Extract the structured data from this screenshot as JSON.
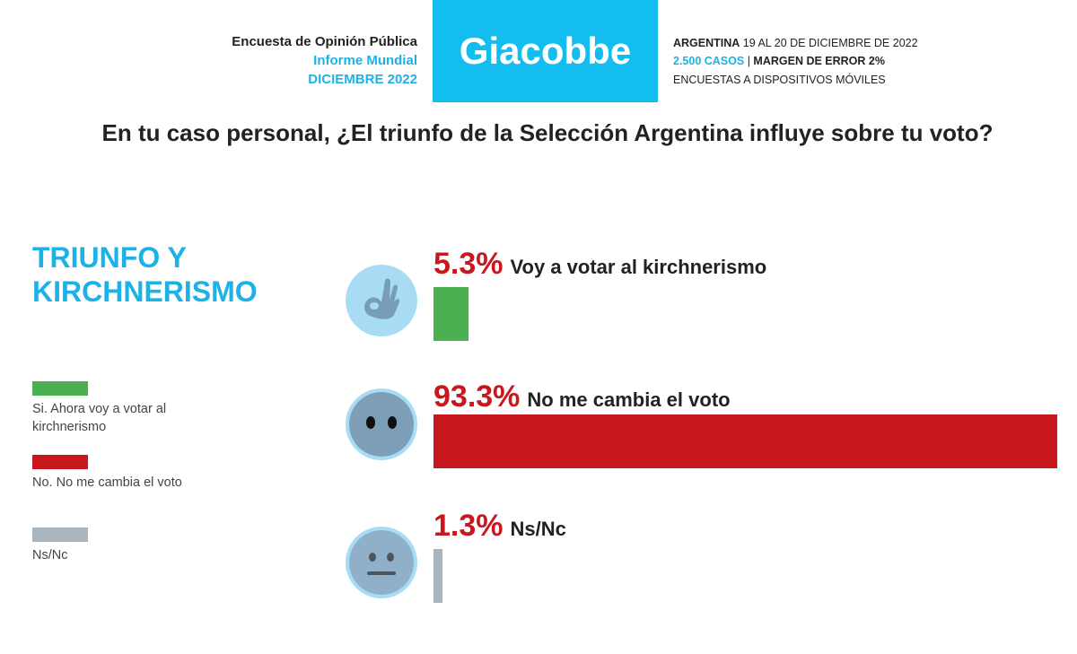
{
  "header": {
    "left_line1": "Encuesta de Opinión Pública",
    "left_line2": "Informe Mundial",
    "left_line3": "DICIEMBRE 2022",
    "logo": "Giacobbe",
    "right_country": "ARGENTINA",
    "right_dates": " 19 AL 20 DE DICIEMBRE DE 2022",
    "right_cases": "2.500 CASOS",
    "right_sep": " | ",
    "right_margin": "MARGEN DE ERROR 2%",
    "right_method": "ENCUESTAS A DISPOSITIVOS MÓVILES"
  },
  "colors": {
    "accent": "#13bdf0",
    "red": "#c8171e",
    "green": "#4caf50",
    "gray": "#a9b4bc"
  },
  "chart_data": {
    "type": "bar",
    "orientation": "horizontal",
    "title": "En tu caso personal, ¿El triunfo de la Selección Argentina influye sobre tu voto?",
    "subtitle": "TRIUNFO Y KIRCHNERISMO",
    "categories": [
      "Voy a votar al kirchnerismo",
      "No me cambia el voto",
      "Ns/Nc"
    ],
    "values": [
      5.3,
      93.3,
      1.3
    ],
    "value_labels": [
      "5.3%",
      "93.3%",
      "1.3%"
    ],
    "bar_colors": [
      "#4caf50",
      "#c8171e",
      "#a9b4bc"
    ],
    "icons": [
      "ok-hand-icon",
      "no-mouth-face-icon",
      "neutral-face-icon"
    ],
    "legend": [
      "Si. Ahora voy a votar al kirchnerismo",
      "No. No me cambia el voto",
      "Ns/Nc"
    ],
    "legend_placement": "left",
    "xlim": [
      0,
      100
    ]
  }
}
